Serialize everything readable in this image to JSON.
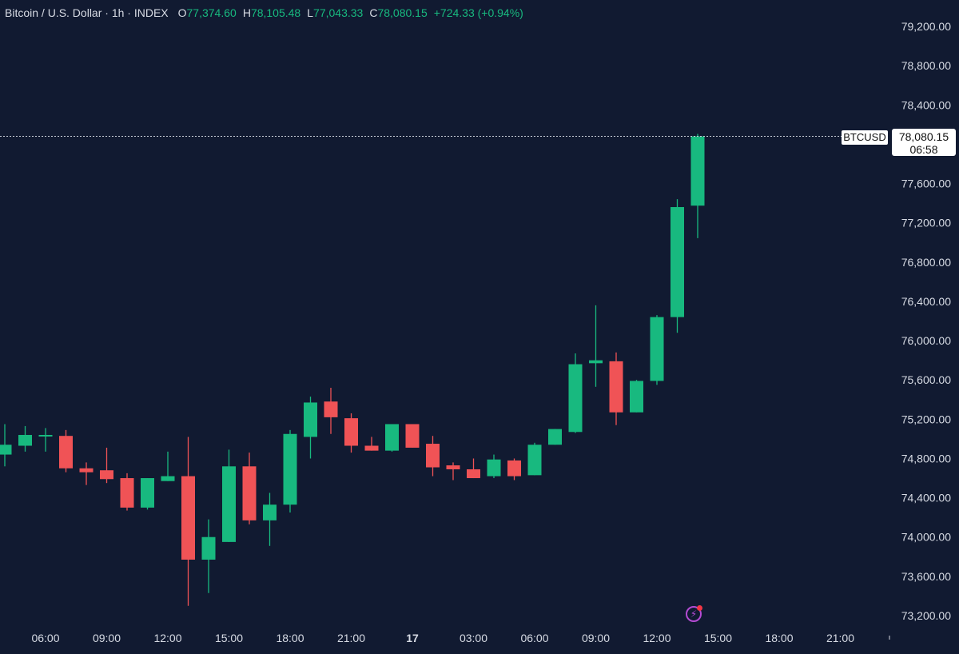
{
  "legend": {
    "title": "Bitcoin / U.S. Dollar · 1h · INDEX",
    "open_key": "O",
    "open": "77,374.60",
    "high_key": "H",
    "high": "78,105.48",
    "low_key": "L",
    "low": "77,043.33",
    "close_key": "C",
    "close": "78,080.15",
    "change": "+724.33 (+0.94%)"
  },
  "last_price": {
    "symbol": "BTCUSD",
    "price": "78,080.15",
    "countdown": "06:58"
  },
  "colors": {
    "up": "#18b97f",
    "down": "#f05356",
    "background": "#111a31",
    "text": "#d7dbe4",
    "alert_icon": "#b44bd3"
  },
  "icons": {
    "alert": "flash-alert-icon"
  },
  "chart_data": {
    "type": "candlestick",
    "ylim": [
      73200,
      79200
    ],
    "y_ticks": [
      "79,200.00",
      "78,800.00",
      "78,400.00",
      "78,000.00",
      "77,600.00",
      "77,200.00",
      "76,800.00",
      "76,400.00",
      "76,000.00",
      "75,600.00",
      "75,200.00",
      "74,800.00",
      "74,400.00",
      "74,000.00",
      "73,600.00",
      "73,200.00"
    ],
    "y_tick_values": [
      79200,
      78800,
      78400,
      78000,
      77600,
      77200,
      76800,
      76400,
      76000,
      75600,
      75200,
      74800,
      74400,
      74000,
      73600,
      73200
    ],
    "x_ticks": [
      {
        "label": "06:00",
        "hour": 6
      },
      {
        "label": "09:00",
        "hour": 9
      },
      {
        "label": "12:00",
        "hour": 12
      },
      {
        "label": "15:00",
        "hour": 15
      },
      {
        "label": "18:00",
        "hour": 18
      },
      {
        "label": "21:00",
        "hour": 21
      },
      {
        "label": "17",
        "hour": 24,
        "bold": true
      },
      {
        "label": "03:00",
        "hour": 27
      },
      {
        "label": "06:00",
        "hour": 30
      },
      {
        "label": "09:00",
        "hour": 33
      },
      {
        "label": "12:00",
        "hour": 36
      },
      {
        "label": "15:00",
        "hour": 39
      },
      {
        "label": "18:00",
        "hour": 42
      },
      {
        "label": "21:00",
        "hour": 45
      }
    ],
    "candles": [
      {
        "hour": 4,
        "o": 74840,
        "h": 75150,
        "l": 74720,
        "c": 74940
      },
      {
        "hour": 5,
        "o": 74930,
        "h": 75130,
        "l": 74870,
        "c": 75040
      },
      {
        "hour": 6,
        "o": 75040,
        "h": 75110,
        "l": 74870,
        "c": 75040
      },
      {
        "hour": 7,
        "o": 75030,
        "h": 75090,
        "l": 74660,
        "c": 74700
      },
      {
        "hour": 8,
        "o": 74700,
        "h": 74760,
        "l": 74530,
        "c": 74660
      },
      {
        "hour": 9,
        "o": 74680,
        "h": 74910,
        "l": 74550,
        "c": 74590
      },
      {
        "hour": 10,
        "o": 74600,
        "h": 74650,
        "l": 74270,
        "c": 74300
      },
      {
        "hour": 11,
        "o": 74300,
        "h": 74600,
        "l": 74280,
        "c": 74600
      },
      {
        "hour": 12,
        "o": 74570,
        "h": 74870,
        "l": 74570,
        "c": 74620
      },
      {
        "hour": 13,
        "o": 74620,
        "h": 75020,
        "l": 73300,
        "c": 73770
      },
      {
        "hour": 14,
        "o": 73770,
        "h": 74180,
        "l": 73430,
        "c": 74000
      },
      {
        "hour": 15,
        "o": 73950,
        "h": 74890,
        "l": 73950,
        "c": 74720
      },
      {
        "hour": 16,
        "o": 74720,
        "h": 74860,
        "l": 74130,
        "c": 74170
      },
      {
        "hour": 17,
        "o": 74170,
        "h": 74450,
        "l": 73910,
        "c": 74330
      },
      {
        "hour": 18,
        "o": 74330,
        "h": 75090,
        "l": 74250,
        "c": 75050
      },
      {
        "hour": 19,
        "o": 75020,
        "h": 75430,
        "l": 74800,
        "c": 75370
      },
      {
        "hour": 20,
        "o": 75380,
        "h": 75520,
        "l": 75050,
        "c": 75220
      },
      {
        "hour": 21,
        "o": 75210,
        "h": 75260,
        "l": 74860,
        "c": 74930
      },
      {
        "hour": 22,
        "o": 74930,
        "h": 75020,
        "l": 74880,
        "c": 74880
      },
      {
        "hour": 23,
        "o": 74880,
        "h": 75150,
        "l": 74870,
        "c": 75150
      },
      {
        "hour": 24,
        "o": 75150,
        "h": 75150,
        "l": 74910,
        "c": 74910
      },
      {
        "hour": 25,
        "o": 74950,
        "h": 75030,
        "l": 74620,
        "c": 74710
      },
      {
        "hour": 26,
        "o": 74730,
        "h": 74760,
        "l": 74580,
        "c": 74690
      },
      {
        "hour": 27,
        "o": 74690,
        "h": 74800,
        "l": 74600,
        "c": 74600
      },
      {
        "hour": 28,
        "o": 74620,
        "h": 74840,
        "l": 74600,
        "c": 74790
      },
      {
        "hour": 29,
        "o": 74780,
        "h": 74800,
        "l": 74580,
        "c": 74620
      },
      {
        "hour": 30,
        "o": 74630,
        "h": 74960,
        "l": 74630,
        "c": 74940
      },
      {
        "hour": 31,
        "o": 74940,
        "h": 75100,
        "l": 74940,
        "c": 75100
      },
      {
        "hour": 32,
        "o": 75070,
        "h": 75870,
        "l": 75060,
        "c": 75760
      },
      {
        "hour": 33,
        "o": 75770,
        "h": 76360,
        "l": 75530,
        "c": 75800
      },
      {
        "hour": 34,
        "o": 75790,
        "h": 75880,
        "l": 75140,
        "c": 75270
      },
      {
        "hour": 35,
        "o": 75270,
        "h": 75600,
        "l": 75270,
        "c": 75590
      },
      {
        "hour": 36,
        "o": 75590,
        "h": 76260,
        "l": 75550,
        "c": 76240
      },
      {
        "hour": 37,
        "o": 76240,
        "h": 77440,
        "l": 76080,
        "c": 77360
      },
      {
        "hour": 38,
        "o": 77374.6,
        "h": 78105.48,
        "l": 77043.33,
        "c": 78080.15
      }
    ]
  }
}
